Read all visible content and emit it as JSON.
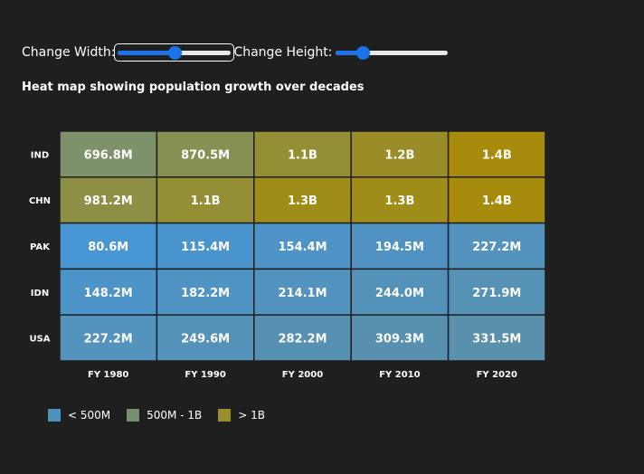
{
  "controls": {
    "width_label": "Change Width:",
    "height_label": "Change Height:",
    "width_value": 0.5,
    "height_value": 0.22
  },
  "chart_data": {
    "type": "heatmap",
    "title": "Heat map showing population growth over decades",
    "rows": [
      "IND",
      "CHN",
      "PAK",
      "IDN",
      "USA"
    ],
    "columns": [
      "FY 1980",
      "FY 1990",
      "FY 2000",
      "FY 2010",
      "FY 2020"
    ],
    "values": [
      [
        696.8,
        870.5,
        1100,
        1200,
        1400
      ],
      [
        981.2,
        1100,
        1300,
        1300,
        1400
      ],
      [
        80.6,
        115.4,
        154.4,
        194.5,
        227.2
      ],
      [
        148.2,
        182.2,
        214.1,
        244.0,
        271.9
      ],
      [
        227.2,
        249.6,
        282.2,
        309.3,
        331.5
      ]
    ],
    "labels": [
      [
        "696.8M",
        "870.5M",
        "1.1B",
        "1.2B",
        "1.4B"
      ],
      [
        "981.2M",
        "1.1B",
        "1.3B",
        "1.3B",
        "1.4B"
      ],
      [
        "80.6M",
        "115.4M",
        "154.4M",
        "194.5M",
        "227.2M"
      ],
      [
        "148.2M",
        "182.2M",
        "214.1M",
        "244.0M",
        "271.9M"
      ],
      [
        "227.2M",
        "249.6M",
        "282.2M",
        "309.3M",
        "331.5M"
      ]
    ],
    "units": "millions",
    "legend": {
      "placement": "bottom-left",
      "items": [
        {
          "label": "< 500M",
          "color": "#4d91bd"
        },
        {
          "label": "500M - 1B",
          "color": "#75906f"
        },
        {
          "label": "> 1B",
          "color": "#9a8d2b"
        }
      ]
    },
    "color_scale": {
      "low": "#4996d4",
      "mid_low": "#5a90ab",
      "mid_start": "#7a9270",
      "high": "#a68b0c"
    }
  }
}
